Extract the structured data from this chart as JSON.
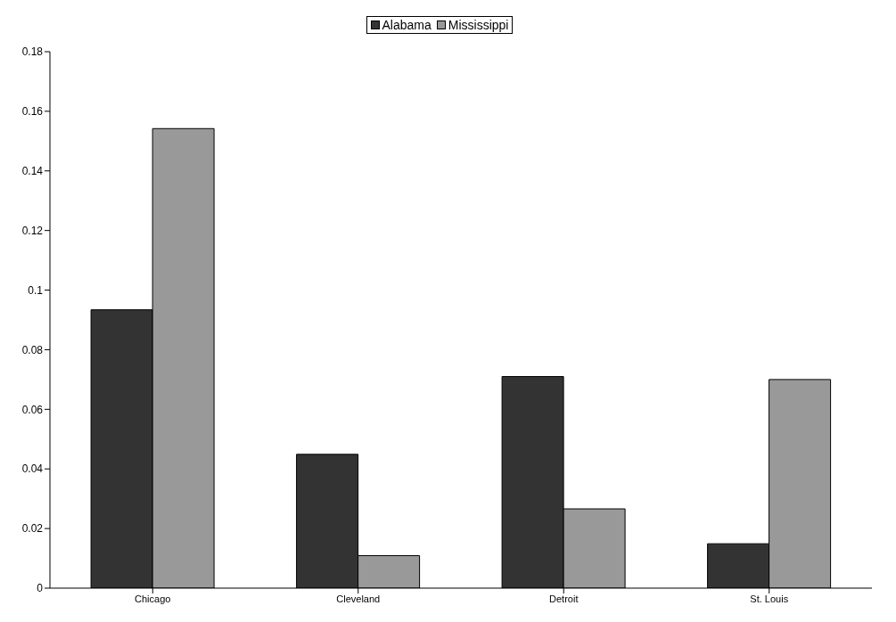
{
  "chart_data": {
    "type": "bar",
    "categories": [
      "Chicago",
      "Cleveland",
      "Detroit",
      "St. Louis"
    ],
    "series": [
      {
        "name": "Alabama",
        "color": "#333333",
        "values": [
          0.0934,
          0.0449,
          0.071,
          0.0149
        ]
      },
      {
        "name": "Mississippi",
        "color": "#999999",
        "values": [
          0.1542,
          0.0109,
          0.0266,
          0.07
        ]
      }
    ],
    "ylim": [
      0,
      0.18
    ],
    "yticks": [
      0,
      0.02,
      0.04,
      0.06,
      0.08,
      0.1,
      0.12,
      0.14,
      0.16,
      0.18
    ],
    "grid": false,
    "legend": "top"
  }
}
